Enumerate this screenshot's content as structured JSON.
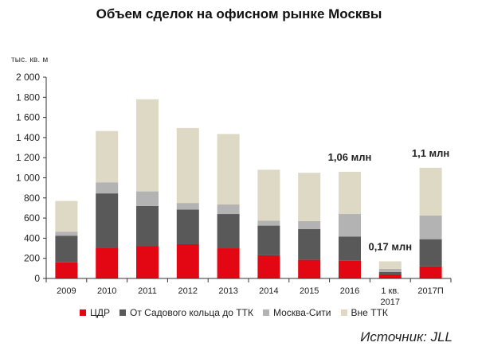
{
  "chart_data": {
    "type": "bar",
    "stacked": true,
    "title": "Объем сделок на офисном рынке Москвы",
    "ylabel": "тыс. кв. м",
    "ylim": [
      0,
      2000
    ],
    "yticks": [
      "0",
      "200",
      "400",
      "600",
      "800",
      "1 000",
      "1 200",
      "1 400",
      "1 600",
      "1 800",
      "2 000"
    ],
    "ytick_values": [
      0,
      200,
      400,
      600,
      800,
      1000,
      1200,
      1400,
      1600,
      1800,
      2000
    ],
    "categories": [
      "2009",
      "2010",
      "2011",
      "2012",
      "2013",
      "2014",
      "2015",
      "2016",
      "1 кв. 2017",
      "2017П"
    ],
    "series": [
      {
        "name": "ЦДР",
        "color": "#e30613",
        "values": [
          160,
          305,
          320,
          340,
          300,
          230,
          185,
          175,
          40,
          120
        ]
      },
      {
        "name": "От Садового кольца до ТТК",
        "color": "#595959",
        "values": [
          265,
          540,
          400,
          345,
          340,
          295,
          305,
          240,
          25,
          270
        ]
      },
      {
        "name": "Москва-Сити",
        "color": "#b3b3b3",
        "values": [
          40,
          110,
          145,
          65,
          95,
          50,
          80,
          225,
          30,
          235
        ]
      },
      {
        "name": "Вне ТТК",
        "color": "#ddd9c4",
        "values": [
          305,
          510,
          915,
          745,
          700,
          505,
          480,
          420,
          75,
          475
        ]
      }
    ],
    "annotations": [
      {
        "category": "2016",
        "text": "1,06 млн"
      },
      {
        "category": "1 кв. 2017",
        "text": "0,17 млн"
      },
      {
        "category": "2017П",
        "text": "1,1 млн"
      }
    ],
    "grid": false,
    "legend": "bottom"
  },
  "source": "Источник: JLL"
}
